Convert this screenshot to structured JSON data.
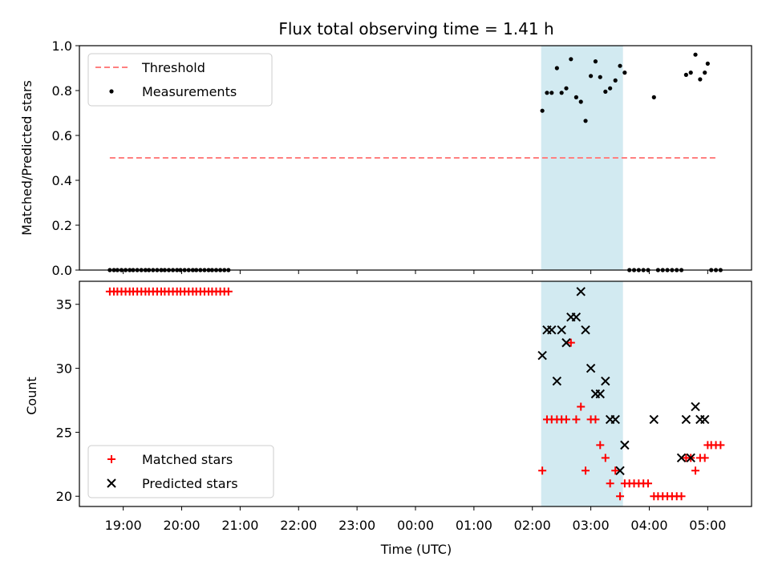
{
  "chart_data": {
    "title": "Flux total observing time = 1.41 h",
    "xlabel": "Time (UTC)",
    "x_tick_labels": [
      "19:00",
      "20:00",
      "21:00",
      "22:00",
      "23:00",
      "00:00",
      "01:00",
      "02:00",
      "03:00",
      "04:00",
      "05:00"
    ],
    "x_tick_hours": [
      19,
      20,
      21,
      22,
      23,
      24,
      25,
      26,
      27,
      28,
      29
    ],
    "x_range_hours": [
      18.25,
      29.75
    ],
    "highlight_span_hours": [
      26.15,
      27.55
    ],
    "colors": {
      "threshold": "#ff8080",
      "measurements": "#000000",
      "matched": "#ff0000",
      "predicted": "#000000",
      "span": "#add8e6"
    },
    "panels": [
      {
        "type": "scatter",
        "ylabel": "Matched/Predicted stars",
        "ylim": [
          0,
          1.0
        ],
        "y_ticks": [
          0.0,
          0.2,
          0.4,
          0.6,
          0.8,
          1.0
        ],
        "y_tick_labels": [
          "0.0",
          "0.2",
          "0.4",
          "0.6",
          "0.8",
          "1.0"
        ],
        "legend": [
          "Threshold",
          "Measurements"
        ],
        "legend_position": "upper-left",
        "threshold": {
          "value": 0.5,
          "x_start": 18.77,
          "x_end": 29.18
        },
        "measurements": [
          [
            18.77,
            0
          ],
          [
            18.84,
            0
          ],
          [
            18.9,
            0
          ],
          [
            18.97,
            0
          ],
          [
            19.04,
            0
          ],
          [
            19.11,
            0
          ],
          [
            19.17,
            0
          ],
          [
            19.24,
            0
          ],
          [
            19.31,
            0
          ],
          [
            19.38,
            0
          ],
          [
            19.44,
            0
          ],
          [
            19.51,
            0
          ],
          [
            19.58,
            0
          ],
          [
            19.65,
            0
          ],
          [
            19.71,
            0
          ],
          [
            19.78,
            0
          ],
          [
            19.85,
            0
          ],
          [
            19.92,
            0
          ],
          [
            19.98,
            0
          ],
          [
            20.05,
            0
          ],
          [
            20.12,
            0
          ],
          [
            20.19,
            0
          ],
          [
            20.25,
            0
          ],
          [
            20.32,
            0
          ],
          [
            20.39,
            0
          ],
          [
            20.46,
            0
          ],
          [
            20.52,
            0
          ],
          [
            20.59,
            0
          ],
          [
            20.66,
            0
          ],
          [
            20.73,
            0
          ],
          [
            20.8,
            0
          ],
          [
            26.17,
            0.71
          ],
          [
            26.25,
            0.79
          ],
          [
            26.33,
            0.79
          ],
          [
            26.42,
            0.9
          ],
          [
            26.5,
            0.79
          ],
          [
            26.58,
            0.81
          ],
          [
            26.66,
            0.94
          ],
          [
            26.75,
            0.77
          ],
          [
            26.83,
            0.75
          ],
          [
            26.91,
            0.665
          ],
          [
            27.0,
            0.865
          ],
          [
            27.08,
            0.93
          ],
          [
            27.16,
            0.86
          ],
          [
            27.25,
            0.795
          ],
          [
            27.33,
            0.81
          ],
          [
            27.42,
            0.845
          ],
          [
            27.5,
            0.91
          ],
          [
            27.58,
            0.88
          ],
          [
            27.66,
            0
          ],
          [
            27.74,
            0
          ],
          [
            27.82,
            0
          ],
          [
            27.9,
            0
          ],
          [
            27.98,
            0
          ],
          [
            28.08,
            0.77
          ],
          [
            28.15,
            0
          ],
          [
            28.23,
            0
          ],
          [
            28.31,
            0
          ],
          [
            28.39,
            0
          ],
          [
            28.47,
            0
          ],
          [
            28.55,
            0
          ],
          [
            28.63,
            0.87
          ],
          [
            28.71,
            0.88
          ],
          [
            28.79,
            0.96
          ],
          [
            28.87,
            0.85
          ],
          [
            28.95,
            0.88
          ],
          [
            29.0,
            0.92
          ],
          [
            29.06,
            0
          ],
          [
            29.14,
            0
          ],
          [
            29.22,
            0
          ]
        ]
      },
      {
        "type": "scatter",
        "ylabel": "Count",
        "ylim": [
          19.2,
          36.8
        ],
        "y_ticks": [
          20,
          25,
          30,
          35
        ],
        "y_tick_labels": [
          "20",
          "25",
          "30",
          "35"
        ],
        "legend": [
          "Matched stars",
          "Predicted stars"
        ],
        "legend_position": "lower-left",
        "matched": [
          [
            18.77,
            36
          ],
          [
            18.84,
            36
          ],
          [
            18.9,
            36
          ],
          [
            18.97,
            36
          ],
          [
            19.04,
            36
          ],
          [
            19.11,
            36
          ],
          [
            19.17,
            36
          ],
          [
            19.24,
            36
          ],
          [
            19.31,
            36
          ],
          [
            19.38,
            36
          ],
          [
            19.44,
            36
          ],
          [
            19.51,
            36
          ],
          [
            19.58,
            36
          ],
          [
            19.65,
            36
          ],
          [
            19.71,
            36
          ],
          [
            19.78,
            36
          ],
          [
            19.85,
            36
          ],
          [
            19.92,
            36
          ],
          [
            19.98,
            36
          ],
          [
            20.05,
            36
          ],
          [
            20.12,
            36
          ],
          [
            20.19,
            36
          ],
          [
            20.25,
            36
          ],
          [
            20.32,
            36
          ],
          [
            20.39,
            36
          ],
          [
            20.46,
            36
          ],
          [
            20.52,
            36
          ],
          [
            20.59,
            36
          ],
          [
            20.66,
            36
          ],
          [
            20.73,
            36
          ],
          [
            20.8,
            36
          ],
          [
            26.17,
            22
          ],
          [
            26.25,
            26
          ],
          [
            26.33,
            26
          ],
          [
            26.42,
            26
          ],
          [
            26.5,
            26
          ],
          [
            26.58,
            26
          ],
          [
            26.66,
            32
          ],
          [
            26.75,
            26
          ],
          [
            26.83,
            27
          ],
          [
            26.91,
            22
          ],
          [
            27.0,
            26
          ],
          [
            27.08,
            26
          ],
          [
            27.16,
            24
          ],
          [
            27.25,
            23
          ],
          [
            27.33,
            21
          ],
          [
            27.42,
            22
          ],
          [
            27.5,
            20
          ],
          [
            27.58,
            21
          ],
          [
            27.66,
            21
          ],
          [
            27.74,
            21
          ],
          [
            27.82,
            21
          ],
          [
            27.9,
            21
          ],
          [
            27.98,
            21
          ],
          [
            28.08,
            20
          ],
          [
            28.15,
            20
          ],
          [
            28.23,
            20
          ],
          [
            28.31,
            20
          ],
          [
            28.39,
            20
          ],
          [
            28.47,
            20
          ],
          [
            28.55,
            20
          ],
          [
            28.63,
            23
          ],
          [
            28.71,
            23
          ],
          [
            28.79,
            22
          ],
          [
            28.87,
            23
          ],
          [
            28.95,
            23
          ],
          [
            29.0,
            24
          ],
          [
            29.06,
            24
          ],
          [
            29.14,
            24
          ],
          [
            29.22,
            24
          ]
        ],
        "predicted": [
          [
            26.17,
            31
          ],
          [
            26.25,
            33
          ],
          [
            26.33,
            33
          ],
          [
            26.42,
            29
          ],
          [
            26.5,
            33
          ],
          [
            26.58,
            32
          ],
          [
            26.66,
            34
          ],
          [
            26.75,
            34
          ],
          [
            26.83,
            36
          ],
          [
            26.91,
            33
          ],
          [
            27.0,
            30
          ],
          [
            27.08,
            28
          ],
          [
            27.16,
            28
          ],
          [
            27.25,
            29
          ],
          [
            27.33,
            26
          ],
          [
            27.42,
            26
          ],
          [
            27.5,
            22
          ],
          [
            27.58,
            24
          ],
          [
            28.08,
            26
          ],
          [
            28.55,
            23
          ],
          [
            28.63,
            26
          ],
          [
            28.71,
            23
          ],
          [
            28.79,
            27
          ],
          [
            28.87,
            26
          ],
          [
            28.95,
            26
          ]
        ]
      }
    ]
  }
}
